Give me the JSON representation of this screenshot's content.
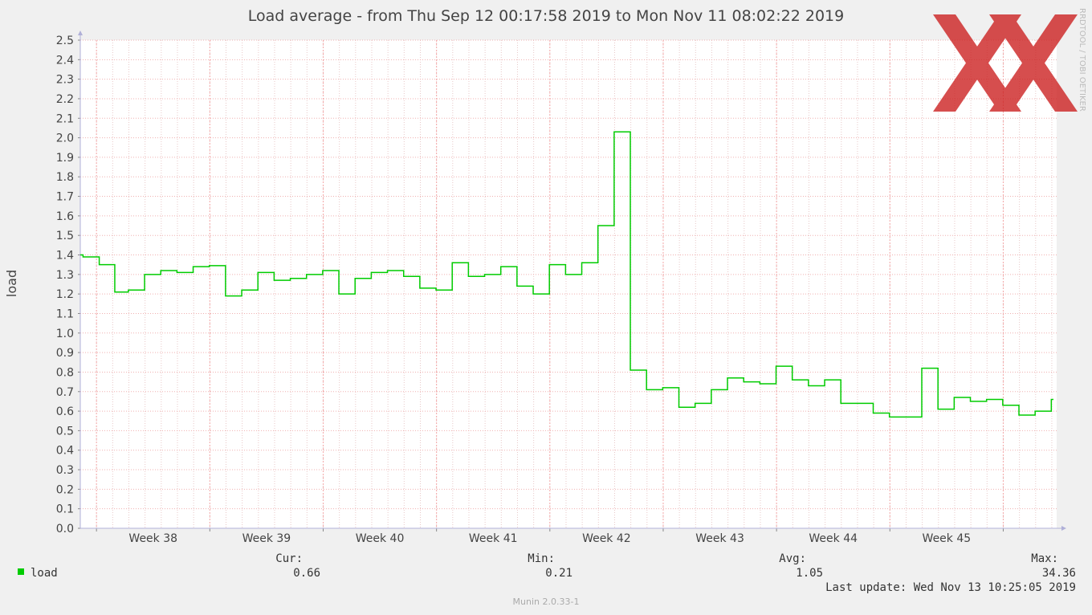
{
  "chart_data": {
    "type": "line",
    "title": "Load average - from Thu Sep 12 00:17:58 2019 to Mon Nov 11 08:02:22 2019",
    "ylabel": "load",
    "xlabel": "",
    "ylim": [
      0.0,
      2.5
    ],
    "yticks": [
      "0.0",
      "0.1",
      "0.2",
      "0.3",
      "0.4",
      "0.5",
      "0.6",
      "0.7",
      "0.8",
      "0.9",
      "1.0",
      "1.1",
      "1.2",
      "1.3",
      "1.4",
      "1.5",
      "1.6",
      "1.7",
      "1.8",
      "1.9",
      "2.0",
      "2.1",
      "2.2",
      "2.3",
      "2.4",
      "2.5"
    ],
    "x_range_days": [
      0,
      60.3
    ],
    "xticks": [
      {
        "label": "Week 38",
        "day": 4.5
      },
      {
        "label": "Week 39",
        "day": 11.5
      },
      {
        "label": "Week 40",
        "day": 18.5
      },
      {
        "label": "Week 41",
        "day": 25.5
      },
      {
        "label": "Week 42",
        "day": 32.5
      },
      {
        "label": "Week 43",
        "day": 39.5
      },
      {
        "label": "Week 44",
        "day": 46.5
      },
      {
        "label": "Week 45",
        "day": 53.5
      }
    ],
    "grid": true,
    "series": [
      {
        "name": "load",
        "color": "#00cc00",
        "x": [
          0,
          0.17,
          1.17,
          2.13,
          2.97,
          3.97,
          4.97,
          5.97,
          6.97,
          7.97,
          8.97,
          9.97,
          10.97,
          11.97,
          12.97,
          13.97,
          14.97,
          15.97,
          16.97,
          17.97,
          18.97,
          19.97,
          20.97,
          21.97,
          22.97,
          23.97,
          24.97,
          25.97,
          26.97,
          27.97,
          28.97,
          29.97,
          30.97,
          31.97,
          32.97,
          33.97,
          34.97,
          35.97,
          36.97,
          37.97,
          38.97,
          39.97,
          40.97,
          41.97,
          42.97,
          43.97,
          44.97,
          45.97,
          46.97,
          47.97,
          48.97,
          49.97,
          50.97,
          51.97,
          52.97,
          53.97,
          54.97,
          55.97,
          56.97,
          57.97,
          58.97,
          59.97,
          60.1
        ],
        "values": [
          1.4,
          1.39,
          1.35,
          1.21,
          1.22,
          1.3,
          1.32,
          1.31,
          1.34,
          1.345,
          1.19,
          1.22,
          1.31,
          1.27,
          1.28,
          1.3,
          1.32,
          1.2,
          1.28,
          1.31,
          1.32,
          1.29,
          1.23,
          1.22,
          1.36,
          1.29,
          1.3,
          1.34,
          1.24,
          1.2,
          1.35,
          1.3,
          1.36,
          1.55,
          2.03,
          0.81,
          0.71,
          0.72,
          0.62,
          0.64,
          0.71,
          0.77,
          0.75,
          0.74,
          0.83,
          0.76,
          0.73,
          0.76,
          0.64,
          0.64,
          0.59,
          0.57,
          0.57,
          0.82,
          0.61,
          0.67,
          0.65,
          0.66,
          0.63,
          0.58,
          0.6,
          0.66,
          0.66
        ]
      }
    ]
  },
  "legend": {
    "series_label": "load",
    "series_color": "#00cc00",
    "cur_label": "Cur:",
    "cur_value": "0.66",
    "min_label": "Min:",
    "min_value": "0.21",
    "avg_label": "Avg:",
    "avg_value": "1.05",
    "max_label": "Max:",
    "max_value": "34.36"
  },
  "footer": {
    "last_update": "Last update: Wed Nov 13 10:25:05 2019",
    "version": "Munin 2.0.33-1"
  },
  "watermark": {
    "vertical_text": "RRDTOOL / TOBI OETIKER",
    "logo_color": "#cc2222"
  }
}
